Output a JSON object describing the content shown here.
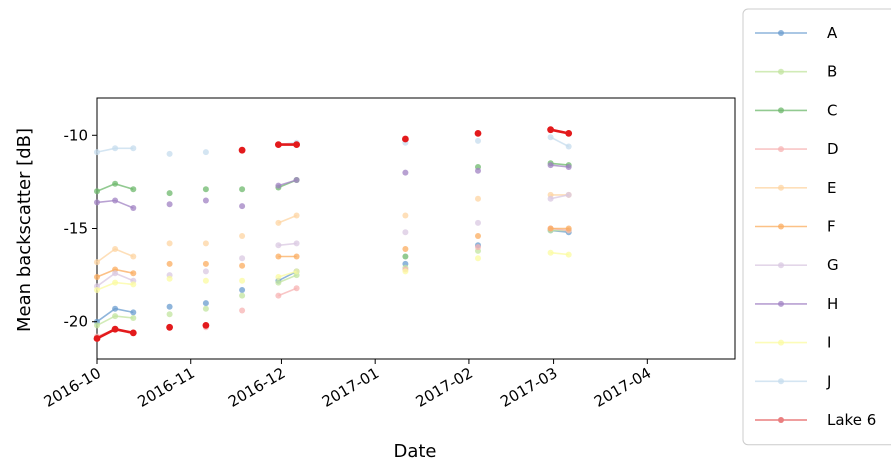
{
  "chart_data": {
    "type": "line",
    "xlabel": "Date",
    "ylabel": "Mean backscatter [dB]",
    "x_axis": "date",
    "xlim": [
      "2016-10-01",
      "2017-04-30"
    ],
    "ylim": [
      -22.0,
      -8.0
    ],
    "xticks": [
      {
        "date": "2016-10-01",
        "label": "2016-10"
      },
      {
        "date": "2016-11-01",
        "label": "2016-11"
      },
      {
        "date": "2016-12-01",
        "label": "2016-12"
      },
      {
        "date": "2017-01-01",
        "label": "2017-01"
      },
      {
        "date": "2017-02-01",
        "label": "2017-02"
      },
      {
        "date": "2017-03-01",
        "label": "2017-03"
      },
      {
        "date": "2017-04-01",
        "label": "2017-04"
      }
    ],
    "yticks": [
      {
        "value": -20,
        "label": "-20"
      },
      {
        "value": -15,
        "label": "-15"
      },
      {
        "value": -10,
        "label": "-10"
      }
    ],
    "legend_position": "outside right",
    "series": [
      {
        "name": "A",
        "color": "#6a9ccf",
        "highlight": false,
        "points": [
          [
            "2016-10-01",
            -20.0
          ],
          [
            "2016-10-07",
            -19.3
          ],
          [
            "2016-10-13",
            -19.5
          ],
          [
            "2016-10-25",
            -19.2
          ],
          [
            "2016-11-06",
            -19.0
          ],
          [
            "2016-11-18",
            -18.3
          ],
          [
            "2016-11-30",
            -17.8
          ],
          [
            "2016-12-06",
            -17.3
          ],
          [
            "2017-01-11",
            -16.9
          ],
          [
            "2017-02-04",
            -15.9
          ],
          [
            "2017-02-28",
            -15.1
          ],
          [
            "2017-03-06",
            -15.2
          ]
        ]
      },
      {
        "name": "B",
        "color": "#c2e49f",
        "highlight": false,
        "points": [
          [
            "2016-10-01",
            -20.2
          ],
          [
            "2016-10-07",
            -19.7
          ],
          [
            "2016-10-13",
            -19.8
          ],
          [
            "2016-10-25",
            -19.6
          ],
          [
            "2016-11-06",
            -19.3
          ],
          [
            "2016-11-18",
            -18.6
          ],
          [
            "2016-11-30",
            -17.9
          ],
          [
            "2016-12-06",
            -17.5
          ],
          [
            "2017-01-11",
            -17.1
          ],
          [
            "2017-02-04",
            -16.2
          ],
          [
            "2017-02-28",
            -15.1
          ],
          [
            "2017-03-06",
            -15.1
          ]
        ]
      },
      {
        "name": "C",
        "color": "#6db86c",
        "highlight": false,
        "points": [
          [
            "2016-10-01",
            -13.0
          ],
          [
            "2016-10-07",
            -12.6
          ],
          [
            "2016-10-13",
            -12.9
          ],
          [
            "2016-10-25",
            -13.1
          ],
          [
            "2016-11-06",
            -12.9
          ],
          [
            "2016-11-18",
            -12.9
          ],
          [
            "2016-11-30",
            -12.8
          ],
          [
            "2016-12-06",
            -12.4
          ],
          [
            "2017-01-11",
            -16.5
          ],
          [
            "2017-02-04",
            -11.7
          ],
          [
            "2017-02-28",
            -11.5
          ],
          [
            "2017-03-06",
            -11.6
          ]
        ]
      },
      {
        "name": "D",
        "color": "#f7b3b3",
        "highlight": false,
        "points": [
          [
            "2016-10-01",
            -20.8
          ],
          [
            "2016-10-07",
            -20.4
          ],
          [
            "2016-10-13",
            -20.6
          ],
          [
            "2016-10-25",
            -20.3
          ],
          [
            "2016-11-06",
            -20.3
          ],
          [
            "2016-11-18",
            -19.4
          ],
          [
            "2016-11-30",
            -18.6
          ],
          [
            "2016-12-06",
            -18.2
          ],
          [
            "2017-01-11",
            -17.2
          ],
          [
            "2017-02-04",
            -16.0
          ],
          [
            "2017-02-28",
            -15.0
          ],
          [
            "2017-03-06",
            -15.1
          ]
        ]
      },
      {
        "name": "E",
        "color": "#fdd4a1",
        "highlight": false,
        "points": [
          [
            "2016-10-01",
            -16.8
          ],
          [
            "2016-10-07",
            -16.1
          ],
          [
            "2016-10-13",
            -16.5
          ],
          [
            "2016-10-25",
            -15.8
          ],
          [
            "2016-11-06",
            -15.8
          ],
          [
            "2016-11-18",
            -15.4
          ],
          [
            "2016-11-30",
            -14.7
          ],
          [
            "2016-12-06",
            -14.3
          ],
          [
            "2017-01-11",
            -14.3
          ],
          [
            "2017-02-04",
            -13.4
          ],
          [
            "2017-02-28",
            -13.2
          ],
          [
            "2017-03-06",
            -13.2
          ]
        ]
      },
      {
        "name": "F",
        "color": "#fbac5f",
        "highlight": false,
        "points": [
          [
            "2016-10-01",
            -17.6
          ],
          [
            "2016-10-07",
            -17.2
          ],
          [
            "2016-10-13",
            -17.4
          ],
          [
            "2016-10-25",
            -16.9
          ],
          [
            "2016-11-06",
            -16.9
          ],
          [
            "2016-11-18",
            -17.0
          ],
          [
            "2016-11-30",
            -16.5
          ],
          [
            "2016-12-06",
            -16.5
          ],
          [
            "2017-01-11",
            -16.1
          ],
          [
            "2017-02-04",
            -15.4
          ],
          [
            "2017-02-28",
            -15.0
          ],
          [
            "2017-03-06",
            -15.0
          ]
        ]
      },
      {
        "name": "G",
        "color": "#d9c8e2",
        "highlight": false,
        "points": [
          [
            "2016-10-01",
            -18.1
          ],
          [
            "2016-10-07",
            -17.4
          ],
          [
            "2016-10-13",
            -17.8
          ],
          [
            "2016-10-25",
            -17.5
          ],
          [
            "2016-11-06",
            -17.3
          ],
          [
            "2016-11-18",
            -16.6
          ],
          [
            "2016-11-30",
            -15.9
          ],
          [
            "2016-12-06",
            -15.8
          ],
          [
            "2017-01-11",
            -15.2
          ],
          [
            "2017-02-04",
            -14.7
          ],
          [
            "2017-02-28",
            -13.4
          ],
          [
            "2017-03-06",
            -13.2
          ]
        ]
      },
      {
        "name": "H",
        "color": "#a081c3",
        "highlight": false,
        "points": [
          [
            "2016-10-01",
            -13.6
          ],
          [
            "2016-10-07",
            -13.5
          ],
          [
            "2016-10-13",
            -13.9
          ],
          [
            "2016-10-25",
            -13.7
          ],
          [
            "2016-11-06",
            -13.5
          ],
          [
            "2016-11-18",
            -13.8
          ],
          [
            "2016-11-30",
            -12.7
          ],
          [
            "2016-12-06",
            -12.4
          ],
          [
            "2017-01-11",
            -12.0
          ],
          [
            "2017-02-04",
            -11.9
          ],
          [
            "2017-02-28",
            -11.6
          ],
          [
            "2017-03-06",
            -11.7
          ]
        ]
      },
      {
        "name": "I",
        "color": "#fbfba0",
        "highlight": false,
        "points": [
          [
            "2016-10-01",
            -18.3
          ],
          [
            "2016-10-07",
            -17.9
          ],
          [
            "2016-10-13",
            -18.0
          ],
          [
            "2016-10-25",
            -17.7
          ],
          [
            "2016-11-06",
            -17.8
          ],
          [
            "2016-11-18",
            -17.8
          ],
          [
            "2016-11-30",
            -17.6
          ],
          [
            "2016-12-06",
            -17.3
          ],
          [
            "2017-01-11",
            -17.3
          ],
          [
            "2017-02-04",
            -16.6
          ],
          [
            "2017-02-28",
            -16.3
          ],
          [
            "2017-03-06",
            -16.4
          ]
        ]
      },
      {
        "name": "J",
        "color": "#c5dcee",
        "highlight": false,
        "points": [
          [
            "2016-10-01",
            -10.9
          ],
          [
            "2016-10-07",
            -10.7
          ],
          [
            "2016-10-13",
            -10.7
          ],
          [
            "2016-10-25",
            -11.0
          ],
          [
            "2016-11-06",
            -10.9
          ],
          [
            "2016-11-18",
            -10.8
          ],
          [
            "2016-11-30",
            -10.5
          ],
          [
            "2016-12-06",
            -10.4
          ],
          [
            "2017-01-11",
            -10.4
          ],
          [
            "2017-02-04",
            -10.3
          ],
          [
            "2017-02-28",
            -10.1
          ],
          [
            "2017-03-06",
            -10.6
          ]
        ]
      },
      {
        "name": "Lake 6",
        "color": "#e31a1c",
        "highlight": true,
        "legend_color": "#ea7e7f",
        "points": [
          [
            "2016-10-01",
            -20.9
          ],
          [
            "2016-10-07",
            -20.4
          ],
          [
            "2016-10-13",
            -20.6
          ],
          [
            "2016-10-25",
            -20.3
          ],
          [
            "2016-11-06",
            -20.2
          ],
          [
            "2016-11-18",
            -10.8
          ],
          [
            "2016-11-30",
            -10.5
          ],
          [
            "2016-12-06",
            -10.5
          ],
          [
            "2017-01-11",
            -10.2
          ],
          [
            "2017-02-04",
            -9.9
          ],
          [
            "2017-02-28",
            -9.7
          ],
          [
            "2017-03-06",
            -9.9
          ]
        ]
      }
    ]
  }
}
